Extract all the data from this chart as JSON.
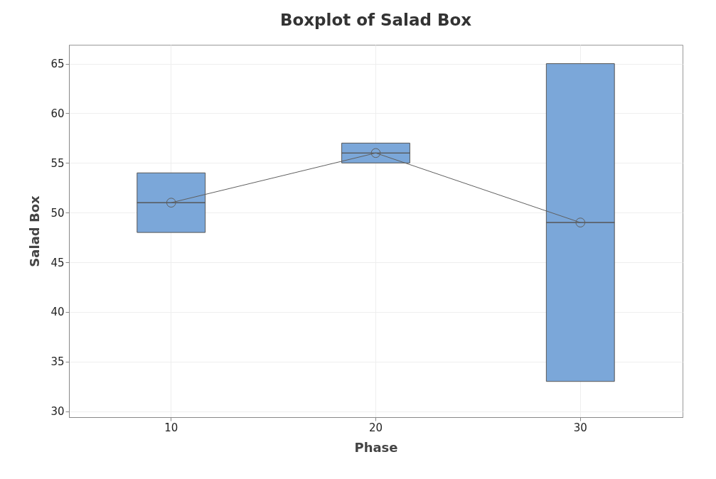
{
  "chart_data": {
    "type": "box",
    "title": "Boxplot of Salad Box",
    "xlabel": "Phase",
    "ylabel": "Salad Box",
    "categories": [
      "10",
      "20",
      "30"
    ],
    "ylim": [
      29.4,
      66.9
    ],
    "yticks": [
      30,
      35,
      40,
      45,
      50,
      55,
      60,
      65
    ],
    "grid": true,
    "series": [
      {
        "type": "box",
        "color": "#7ba7d9",
        "boxes": [
          {
            "low": 48,
            "q1": 48,
            "median": 51,
            "q3": 54,
            "high": 54
          },
          {
            "low": 55,
            "q1": 55,
            "median": 56,
            "q3": 57,
            "high": 57
          },
          {
            "low": 33,
            "q1": 33,
            "median": 49,
            "q3": 65,
            "high": 65
          }
        ]
      },
      {
        "type": "line",
        "color": "#5f5f5f",
        "marker": "circle",
        "values": [
          51,
          56,
          49
        ]
      }
    ]
  }
}
